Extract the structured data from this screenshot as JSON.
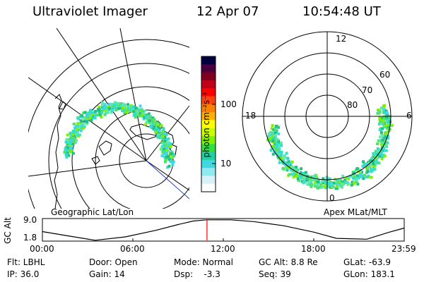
{
  "header": {
    "instrument": "Ultraviolet Imager",
    "date": "12 Apr 07",
    "time": "10:54:48 UT"
  },
  "left_panel": {
    "caption": "Geographic Lat/Lon"
  },
  "right_panel": {
    "caption": "Apex MLat/MLT",
    "mlt_labels": [
      "12",
      "18",
      "6",
      "0"
    ],
    "lat_labels": [
      "60",
      "70",
      "80"
    ]
  },
  "colorbar": {
    "unit_label": "photon cm⁻²s⁻¹",
    "tick_labels": [
      "100",
      "10"
    ],
    "colors": [
      "#000040",
      "#4a0040",
      "#800020",
      "#c00018",
      "#ff0000",
      "#ff4010",
      "#ff8000",
      "#ffb000",
      "#ffff00",
      "#c8ff00",
      "#80f000",
      "#30e040",
      "#20d0a0",
      "#40d8e0",
      "#90e8f0",
      "#d8f0f8",
      "#ffffff"
    ]
  },
  "chart_data": {
    "type": "line",
    "title": "",
    "ylabel": "GC Alt",
    "y_tick_labels": [
      "9.0",
      "1.8"
    ],
    "x_tick_labels": [
      "00:00",
      "06:00",
      "12:00",
      "18:00",
      "23:59"
    ],
    "x_hours": [
      0,
      1.5,
      3.5,
      5.5,
      7.5,
      9.0,
      10.0,
      10.9,
      12.5,
      14.0,
      16.0,
      18.0,
      19.5,
      21.5,
      23.0,
      23.99
    ],
    "y_re": [
      4.8,
      3.5,
      1.85,
      3.0,
      5.2,
      7.2,
      8.4,
      8.8,
      8.8,
      8.2,
      6.8,
      4.6,
      2.5,
      2.2,
      4.6,
      6.0
    ],
    "ylim": [
      1.8,
      9.0
    ],
    "xlim": [
      0,
      23.99
    ],
    "current_time_hours": 10.913,
    "marker_color": "#ff0000"
  },
  "status": {
    "filter": "Flt: LBHL",
    "door": "Door: Open",
    "mode": "Mode: Normal",
    "gc_alt": "GC Alt: 8.8 Re",
    "glat": "GLat: -63.9",
    "ip": "IP: 36.0",
    "gain": "Gain: 14",
    "dsp": "Dsp:    -3.3",
    "seq": "Seq: 39",
    "glon": "GLon: 183.1"
  }
}
